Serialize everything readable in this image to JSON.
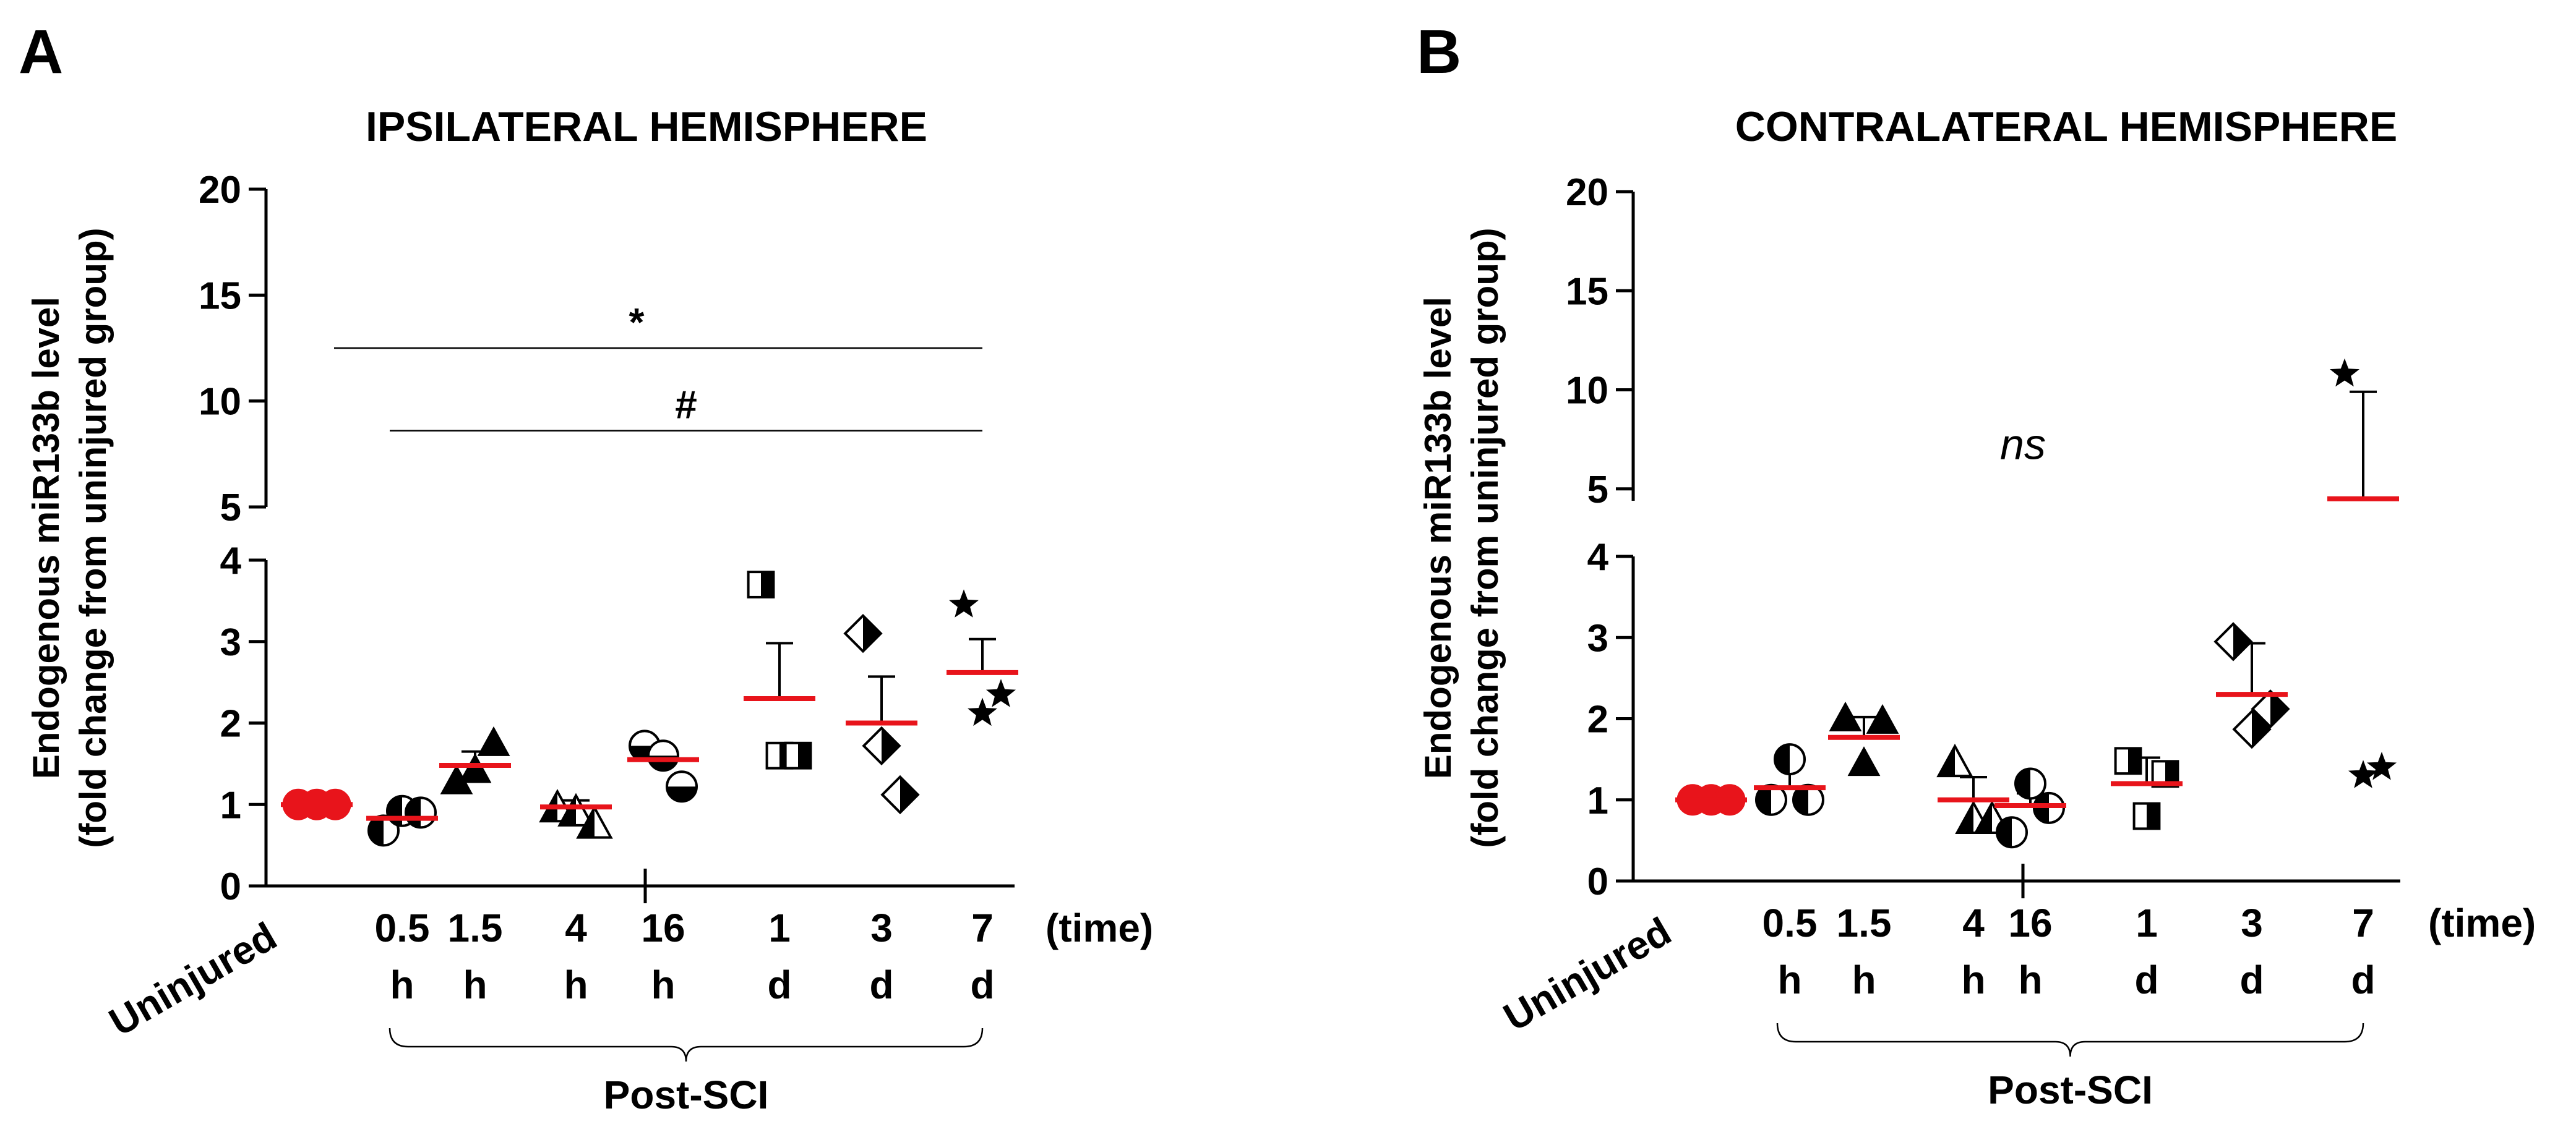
{
  "figure": {
    "panels": [
      "A",
      "B"
    ],
    "time_label": "(time)",
    "group_label": "Post-SCI",
    "ylabel_line1": "Endogenous miR133b level",
    "ylabel_line2": "(fold change from uninjured group)",
    "colors": {
      "mean_line": "#e8141b",
      "uninjured_marker": "#e8141b",
      "axis": "#000000"
    }
  },
  "chart_data": [
    {
      "type": "scatter",
      "panel": "A",
      "title": "IPSILATERAL HEMISPHERE",
      "ylabel": "Endogenous miR133b level (fold change from uninjured group)",
      "categories": [
        "Uninjured",
        "0.5 h",
        "1.5 h",
        "4 h",
        "16 h",
        "1 d",
        "3 d",
        "7 d"
      ],
      "x_tick_values": [
        "Uninjured",
        "0.5",
        "1.5",
        "4",
        "16",
        "1",
        "3",
        "7"
      ],
      "x_tick_units": [
        "",
        "h",
        "h",
        "h",
        "h",
        "d",
        "d",
        "d"
      ],
      "y_axis_broken": true,
      "ylim_lower": [
        0,
        4
      ],
      "ylim_upper": [
        5,
        20
      ],
      "yticks_lower": [
        "0",
        "1",
        "2",
        "3",
        "4"
      ],
      "yticks_upper": [
        "5",
        "10",
        "15",
        "20"
      ],
      "marker_icons": [
        "red-circle",
        "half-filled-circle",
        "filled-triangle",
        "half-filled-triangle",
        "half-filled-circle-vertical",
        "half-filled-square",
        "half-filled-diamond",
        "star"
      ],
      "points": [
        [
          1.0,
          1.0,
          1.0
        ],
        [
          0.68,
          0.92,
          0.9
        ],
        [
          1.28,
          1.42,
          1.75
        ],
        [
          0.95,
          0.9,
          0.75
        ],
        [
          1.72,
          1.6,
          1.22
        ],
        [
          3.7,
          1.6,
          1.6
        ],
        [
          3.1,
          1.72,
          1.12
        ],
        [
          3.45,
          2.12,
          2.35
        ]
      ],
      "mean": [
        1.0,
        0.83,
        1.48,
        0.97,
        1.55,
        2.3,
        2.0,
        2.62
      ],
      "sem_upper": [
        1.0,
        0.93,
        1.65,
        1.05,
        1.65,
        2.98,
        2.57,
        3.03
      ],
      "significance": [
        {
          "symbol": "*",
          "from": "Uninjured",
          "to": "7 d"
        },
        {
          "symbol": "#",
          "from": "0.5 h",
          "to": "7 d"
        }
      ]
    },
    {
      "type": "scatter",
      "panel": "B",
      "title": "CONTRALATERAL HEMISPHERE",
      "ylabel": "Endogenous miR133b level (fold change from uninjured group)",
      "categories": [
        "Uninjured",
        "0.5 h",
        "1.5 h",
        "4 h",
        "16 h",
        "1 d",
        "3 d",
        "7 d"
      ],
      "x_tick_values": [
        "Uninjured",
        "0.5",
        "1.5",
        "4",
        "16",
        "1",
        "3",
        "7"
      ],
      "x_tick_units": [
        "",
        "h",
        "h",
        "h",
        "h",
        "d",
        "d",
        "d"
      ],
      "y_axis_broken": true,
      "ylim_lower": [
        0,
        4
      ],
      "ylim_upper": [
        4.4,
        20
      ],
      "yticks_lower": [
        "0",
        "1",
        "2",
        "3",
        "4"
      ],
      "yticks_upper": [
        "5",
        "10",
        "15",
        "20"
      ],
      "marker_icons": [
        "red-circle",
        "half-filled-circle",
        "filled-triangle",
        "half-filled-triangle",
        "half-filled-circle",
        "half-filled-square",
        "half-filled-diamond",
        "star"
      ],
      "points": [
        [
          1.0,
          1.0,
          1.0
        ],
        [
          1.0,
          1.5,
          1.0
        ],
        [
          2.0,
          1.45,
          1.97
        ],
        [
          1.45,
          0.75,
          0.75
        ],
        [
          0.6,
          1.2,
          0.9
        ],
        [
          1.48,
          0.8,
          1.32
        ],
        [
          2.95,
          1.87,
          2.12
        ],
        [
          10.8,
          1.3,
          1.4
        ]
      ],
      "mean": [
        1.0,
        1.15,
        1.77,
        1.0,
        0.93,
        1.2,
        2.3,
        4.5
      ],
      "sem_upper": [
        1.0,
        1.45,
        2.02,
        1.28,
        1.08,
        1.52,
        2.93,
        9.9
      ],
      "annotation": "ns"
    }
  ]
}
